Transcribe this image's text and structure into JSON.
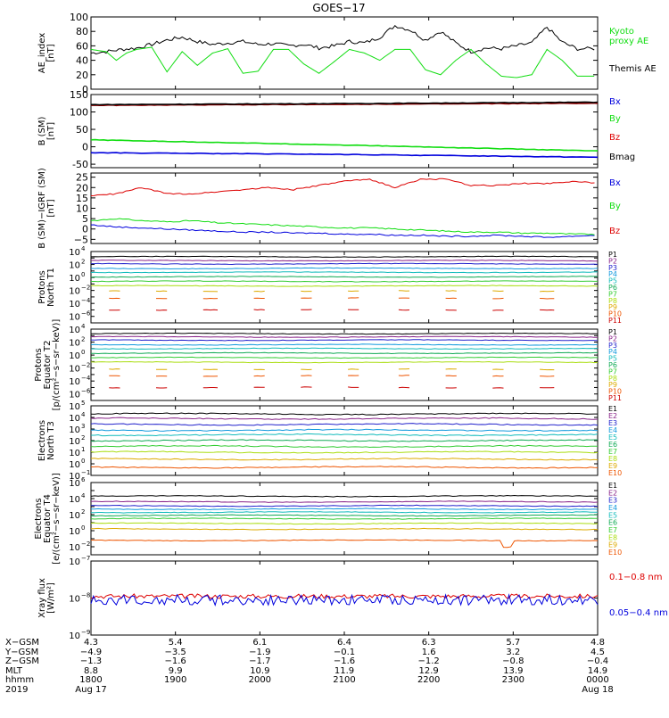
{
  "title": "GOES−17",
  "colors": {
    "black": "#000000",
    "green": "#11dd11",
    "blue": "#0000dd",
    "red": "#dd0000",
    "darkred": "#990000",
    "p_colors": [
      "#000000",
      "#882288",
      "#2222cc",
      "#1199dd",
      "#11bbbb",
      "#11aa55",
      "#33cc33",
      "#aadd11",
      "#ddaa00",
      "#ee5500",
      "#cc0000"
    ],
    "e_colors": [
      "#000000",
      "#882288",
      "#2222cc",
      "#1199dd",
      "#11bbbb",
      "#11aa55",
      "#33cc33",
      "#aadd11",
      "#ddaa00",
      "#ee5500"
    ]
  },
  "chart_data": [
    {
      "type": "line",
      "ylabel": [
        "AE_index",
        "[nT]"
      ],
      "ylim": [
        0,
        100
      ],
      "yticks": [
        "100",
        "80",
        "60",
        "40",
        "20",
        "0"
      ],
      "legend": [
        {
          "label": "Kyoto",
          "color": "green"
        },
        {
          "label": "proxy AE",
          "color": "green"
        },
        {
          "label": "Themis AE",
          "color": "black"
        }
      ],
      "series": [
        {
          "name": "Themis AE",
          "color": "black",
          "x": [
            0,
            0.03,
            0.06,
            0.09,
            0.12,
            0.15,
            0.18,
            0.21,
            0.24,
            0.27,
            0.3,
            0.33,
            0.36,
            0.39,
            0.42,
            0.45,
            0.48,
            0.51,
            0.54,
            0.57,
            0.6,
            0.63,
            0.66,
            0.69,
            0.72,
            0.75,
            0.78,
            0.81,
            0.84,
            0.87,
            0.9,
            0.93,
            0.96,
            1
          ],
          "y": [
            50,
            52,
            55,
            57,
            62,
            68,
            72,
            66,
            62,
            64,
            66,
            62,
            63,
            60,
            62,
            57,
            60,
            66,
            64,
            72,
            88,
            82,
            68,
            80,
            64,
            52,
            57,
            56,
            60,
            64,
            86,
            65,
            56,
            56
          ]
        },
        {
          "name": "Kyoto proxy AE",
          "color": "green",
          "x": [
            0,
            0.03,
            0.05,
            0.07,
            0.09,
            0.12,
            0.15,
            0.18,
            0.21,
            0.24,
            0.27,
            0.3,
            0.33,
            0.36,
            0.39,
            0.42,
            0.45,
            0.48,
            0.51,
            0.54,
            0.57,
            0.6,
            0.63,
            0.66,
            0.69,
            0.72,
            0.75,
            0.78,
            0.81,
            0.84,
            0.87,
            0.9,
            0.93,
            0.96,
            1
          ],
          "y": [
            55,
            52,
            40,
            50,
            55,
            58,
            24,
            52,
            33,
            50,
            56,
            22,
            25,
            55,
            55,
            35,
            22,
            38,
            55,
            50,
            40,
            55,
            55,
            27,
            20,
            40,
            55,
            35,
            18,
            16,
            20,
            55,
            40,
            18,
            18
          ]
        }
      ]
    },
    {
      "type": "line",
      "ylabel": [
        "B (SM)",
        "[nT]"
      ],
      "ylim": [
        -60,
        150
      ],
      "yticks": [
        "150",
        "100",
        "50",
        "0",
        "-50"
      ],
      "legend": [
        {
          "label": "Bx",
          "color": "blue"
        },
        {
          "label": "By",
          "color": "green"
        },
        {
          "label": "Bz",
          "color": "red"
        },
        {
          "label": "Bmag",
          "color": "black"
        }
      ],
      "series": [
        {
          "name": "Bx",
          "color": "blue",
          "x": [
            0,
            0.5,
            1
          ],
          "y": [
            -17,
            -22,
            -30
          ]
        },
        {
          "name": "By",
          "color": "green",
          "x": [
            0,
            0.5,
            1
          ],
          "y": [
            20,
            5,
            -12
          ]
        },
        {
          "name": "Bz",
          "color": "darkred",
          "x": [
            0,
            0.5,
            1
          ],
          "y": [
            119,
            122,
            125
          ]
        },
        {
          "name": "Bmag",
          "color": "black",
          "x": [
            0,
            0.5,
            1
          ],
          "y": [
            121,
            124,
            128
          ]
        }
      ]
    },
    {
      "type": "line",
      "ylabel": [
        "B (SM)−IGRF (SM)",
        "[nT]"
      ],
      "ylim": [
        -7,
        27
      ],
      "yticks": [
        "25",
        "20",
        "15",
        "10",
        "5",
        "0",
        "−5"
      ],
      "legend": [
        {
          "label": "Bx",
          "color": "blue"
        },
        {
          "label": "By",
          "color": "green"
        },
        {
          "label": "Bz",
          "color": "red"
        }
      ],
      "series": [
        {
          "name": "Bx",
          "color": "blue",
          "x": [
            0,
            0.05,
            0.1,
            0.15,
            0.2,
            0.25,
            0.3,
            0.35,
            0.4,
            0.45,
            0.5,
            0.55,
            0.6,
            0.65,
            0.7,
            0.75,
            0.8,
            0.85,
            0.9,
            0.95,
            1
          ],
          "y": [
            2,
            1,
            0.5,
            0,
            -0.5,
            -1,
            -1.5,
            -1.5,
            -2,
            -2,
            -2.5,
            -2.5,
            -3,
            -3,
            -3.5,
            -3.5,
            -3,
            -3.5,
            -4,
            -3.5,
            -3
          ]
        },
        {
          "name": "By",
          "color": "green",
          "x": [
            0,
            0.05,
            0.1,
            0.15,
            0.2,
            0.25,
            0.3,
            0.35,
            0.4,
            0.45,
            0.5,
            0.55,
            0.6,
            0.65,
            0.7,
            0.75,
            0.8,
            0.85,
            0.9,
            0.95,
            1
          ],
          "y": [
            4,
            5,
            4,
            3.5,
            4,
            3,
            2.5,
            2,
            1.5,
            1,
            0.5,
            0.5,
            0,
            -0.5,
            -1,
            -1.5,
            -1.5,
            -2,
            -2,
            -2.5,
            -2.5
          ]
        },
        {
          "name": "Bz",
          "color": "red",
          "x": [
            0,
            0.05,
            0.1,
            0.15,
            0.2,
            0.25,
            0.3,
            0.35,
            0.4,
            0.45,
            0.5,
            0.55,
            0.6,
            0.65,
            0.7,
            0.75,
            0.8,
            0.85,
            0.9,
            0.95,
            1
          ],
          "y": [
            16,
            17,
            20,
            17,
            17,
            18,
            19,
            20,
            19,
            21,
            23,
            24,
            20,
            24,
            24,
            21,
            21,
            22,
            22,
            23,
            22
          ]
        }
      ]
    },
    {
      "type": "line",
      "log": true,
      "ylabel": [
        "Protons",
        "North T1"
      ],
      "ylim_log": [
        -7,
        4
      ],
      "yticks_exp": [
        4,
        2,
        0,
        -2,
        -4,
        -6
      ],
      "legend": [
        "P1",
        "P2",
        "P3",
        "P4",
        "P5",
        "P6",
        "P7",
        "P8",
        "P9",
        "P10",
        "P11"
      ],
      "levels": [
        3.2,
        2.6,
        2.1,
        1.4,
        0.8,
        0.1,
        -0.6,
        -1.3,
        -2.1,
        -3.2,
        -5.0
      ]
    },
    {
      "type": "line",
      "log": true,
      "ylabel": [
        "Protons",
        "Equator T2",
        "[p/(cm²−s−sr−keV)]"
      ],
      "ylim_log": [
        -7,
        4
      ],
      "yticks_exp": [
        4,
        2,
        0,
        -2,
        -4,
        -6
      ],
      "legend": [
        "P1",
        "P2",
        "P3",
        "P4",
        "P5",
        "P6",
        "P7",
        "P8",
        "P9",
        "P10",
        "P11"
      ],
      "levels": [
        3.3,
        2.8,
        2.3,
        1.6,
        1.0,
        0.3,
        -0.4,
        -1.1,
        -2.2,
        -3.2,
        -5.0
      ]
    },
    {
      "type": "line",
      "log": true,
      "ylabel": [
        "Electrons",
        "North T3"
      ],
      "ylim_log": [
        -1,
        5
      ],
      "yticks_exp": [
        5,
        4,
        3,
        2,
        1,
        0,
        -1
      ],
      "legend": [
        "E1",
        "E2",
        "E3",
        "E4",
        "E5",
        "E6",
        "E7",
        "E8",
        "E9",
        "E10"
      ],
      "levels": [
        4.3,
        3.9,
        3.4,
        2.9,
        2.5,
        2.0,
        1.5,
        1.0,
        0.4,
        -0.3
      ]
    },
    {
      "type": "line",
      "log": true,
      "ylabel": [
        "Electrons",
        "Equator T4",
        "[e/(cm²−s−sr−keV)]"
      ],
      "ylim_log": [
        -3,
        6
      ],
      "yticks_exp": [
        6,
        4,
        2,
        0,
        -2
      ],
      "legend": [
        "E1",
        "E2",
        "E3",
        "E4",
        "E5",
        "E6",
        "E7",
        "E8",
        "E9",
        "E10"
      ],
      "levels": [
        4.3,
        3.6,
        3.1,
        2.7,
        2.3,
        1.9,
        1.5,
        0.9,
        0.2,
        -1.2
      ]
    },
    {
      "type": "line",
      "log": true,
      "ylabel": [
        "Xray flux",
        "[W/m²]"
      ],
      "ylim_log": [
        -9,
        -7
      ],
      "yticks_exp": [
        -7,
        -8,
        -9
      ],
      "legend": [
        {
          "label": "0.1−0.8 nm",
          "color": "red"
        },
        {
          "label": "0.05−0.4 nm",
          "color": "blue"
        }
      ],
      "series": [
        {
          "name": "0.1-0.8 nm",
          "color": "red",
          "base": -7.95
        },
        {
          "name": "0.05-0.4 nm",
          "color": "blue",
          "base": -8.05
        }
      ]
    }
  ],
  "xaxis": {
    "row_labels": [
      "X−GSM",
      "Y−GSM",
      "Z−GSM",
      "MLT",
      "hhmm",
      "2019"
    ],
    "columns": [
      [
        "4.3",
        "−4.9",
        "−1.3",
        "8.8",
        "1800",
        "Aug 17"
      ],
      [
        "5.4",
        "−3.5",
        "−1.6",
        "9.9",
        "1900",
        ""
      ],
      [
        "6.1",
        "−1.9",
        "−1.7",
        "10.9",
        "2000",
        ""
      ],
      [
        "6.4",
        "−0.1",
        "−1.6",
        "11.9",
        "2100",
        ""
      ],
      [
        "6.3",
        "1.6",
        "−1.2",
        "12.9",
        "2200",
        ""
      ],
      [
        "5.7",
        "3.2",
        "−0.8",
        "13.9",
        "2300",
        ""
      ],
      [
        "4.8",
        "4.5",
        "−0.4",
        "14.9",
        "0000",
        "Aug 18"
      ]
    ]
  }
}
